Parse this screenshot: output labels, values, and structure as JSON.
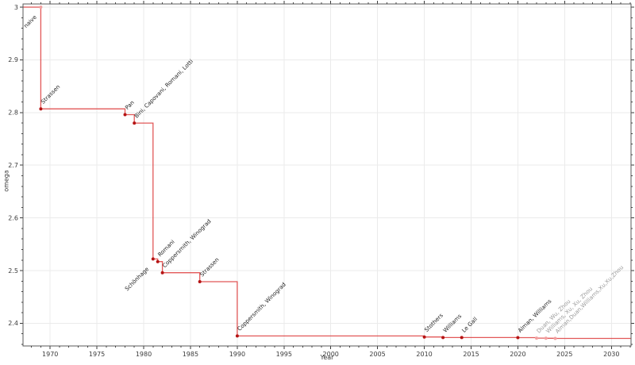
{
  "chart_data": {
    "type": "line",
    "subtype": "step-post-with-markers",
    "title": "",
    "xlabel": "Year",
    "ylabel": "omega",
    "xlim": [
      1967.1,
      2032.1
    ],
    "ylim": [
      2.357,
      3.006
    ],
    "xticks": [
      1970,
      1975,
      1980,
      1985,
      1990,
      1995,
      2000,
      2005,
      2010,
      2015,
      2020,
      2025,
      2030
    ],
    "yticks": [
      2.4,
      2.5,
      2.6,
      2.7,
      2.8,
      2.9,
      3.0
    ],
    "ytick_labels": [
      "2.4",
      "2.5",
      "2.6",
      "2.7",
      "2.8",
      "2.9",
      "3"
    ],
    "x_minor_step": 1,
    "y_minor_step": 0.02,
    "grid": true,
    "legend": "none",
    "colors": {
      "line": "#dd3b3b",
      "marker": "#b51414",
      "faded_marker": "#f2a0a0",
      "label": "#1f1f1f",
      "faded_label": "#9a9a9a",
      "grid": "#ebebeb",
      "spine": "#5a5a5a",
      "tick": "#3a3a3a",
      "tick_label": "#3a3a3a"
    },
    "points": [
      {
        "year": 1969,
        "omega": 3.0,
        "label": "naive",
        "side": "below",
        "faded_marker": true,
        "faded_label": false
      },
      {
        "year": 1969,
        "omega": 2.807,
        "label": "Strassen",
        "side": "above",
        "faded_marker": false,
        "faded_label": false
      },
      {
        "year": 1978,
        "omega": 2.796,
        "label": "Pan",
        "side": "above",
        "faded_marker": false,
        "faded_label": false
      },
      {
        "year": 1979,
        "omega": 2.78,
        "label": "Bini, Capovani, Romani, Lotti",
        "side": "above",
        "faded_marker": false,
        "faded_label": false
      },
      {
        "year": 1981,
        "omega": 2.522,
        "label": "Schönhage",
        "side": "below",
        "faded_marker": false,
        "faded_label": false
      },
      {
        "year": 1981.5,
        "omega": 2.517,
        "label": "Romani",
        "side": "above",
        "faded_marker": false,
        "faded_label": false
      },
      {
        "year": 1982,
        "omega": 2.496,
        "label": "Coppersmith, Winograd",
        "side": "above",
        "faded_marker": false,
        "faded_label": false
      },
      {
        "year": 1986,
        "omega": 2.479,
        "label": "Strassen",
        "side": "above",
        "faded_marker": false,
        "faded_label": false
      },
      {
        "year": 1990,
        "omega": 2.376,
        "label": "Coppersmith, Winograd",
        "side": "above",
        "faded_marker": false,
        "faded_label": false
      },
      {
        "year": 2010,
        "omega": 2.374,
        "label": "Stothers",
        "side": "above",
        "faded_marker": false,
        "faded_label": false
      },
      {
        "year": 2012,
        "omega": 2.3729,
        "label": "Williams",
        "side": "above",
        "faded_marker": false,
        "faded_label": false
      },
      {
        "year": 2014,
        "omega": 2.3729,
        "label": "Le Gall",
        "side": "above",
        "faded_marker": false,
        "faded_label": false
      },
      {
        "year": 2020,
        "omega": 2.3728,
        "label": "Alman, Williams",
        "side": "above",
        "faded_marker": false,
        "faded_label": false
      },
      {
        "year": 2022,
        "omega": 2.3719,
        "label": "Duan, Wu, Zhou",
        "side": "above",
        "faded_marker": true,
        "faded_label": true
      },
      {
        "year": 2023,
        "omega": 2.3716,
        "label": "Williams, Xu, Xu, Zhou",
        "side": "above",
        "faded_marker": true,
        "faded_label": true
      },
      {
        "year": 2024,
        "omega": 2.3713,
        "label": "Alman,Duan,Williams,Xu,Xu,Zhou",
        "side": "above",
        "faded_marker": true,
        "faded_label": true
      }
    ]
  }
}
